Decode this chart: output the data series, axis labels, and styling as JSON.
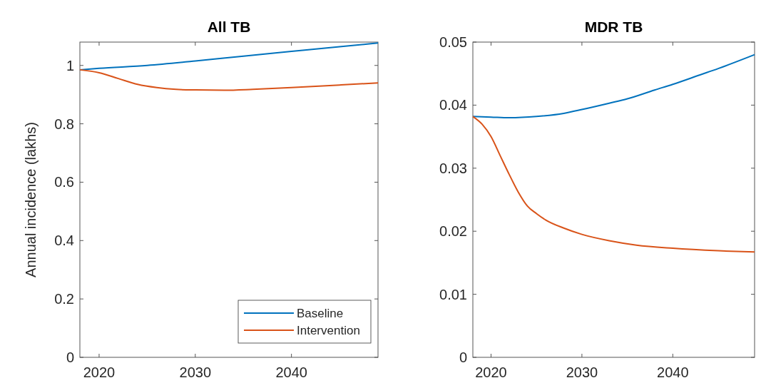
{
  "chart_data": [
    {
      "type": "line",
      "title": "All TB",
      "ylabel": "Annual incidence (lakhs)",
      "xlim": [
        2018,
        2049
      ],
      "xticks": [
        2020,
        2030,
        2040
      ],
      "ylim": [
        0,
        1.08
      ],
      "yticks": [
        0,
        0.2,
        0.4,
        0.6,
        0.8,
        1
      ],
      "legend": "bottom right",
      "marker": "none",
      "series": [
        {
          "name": "Baseline",
          "color": "#0072bd",
          "x": [
            2018,
            2020,
            2025,
            2030,
            2035,
            2040,
            2045,
            2049
          ],
          "values": [
            0.985,
            0.99,
            1.0,
            1.015,
            1.032,
            1.048,
            1.064,
            1.077
          ]
        },
        {
          "name": "Intervention",
          "color": "#d95319",
          "x": [
            2018,
            2020,
            2022,
            2024,
            2026,
            2028,
            2030,
            2033,
            2036,
            2040,
            2045,
            2049
          ],
          "values": [
            0.985,
            0.975,
            0.955,
            0.935,
            0.924,
            0.918,
            0.916,
            0.915,
            0.918,
            0.924,
            0.933,
            0.94
          ]
        }
      ]
    },
    {
      "type": "line",
      "title": "MDR TB",
      "xlim": [
        2018,
        2049
      ],
      "xticks": [
        2020,
        2030,
        2040
      ],
      "ylim": [
        0,
        0.05
      ],
      "yticks": [
        0,
        0.01,
        0.02,
        0.03,
        0.04,
        0.05
      ],
      "marker": "none",
      "series": [
        {
          "color": "#0072bd",
          "x": [
            2018,
            2020,
            2022,
            2025,
            2028,
            2030,
            2033,
            2035,
            2038,
            2040,
            2043,
            2045,
            2049
          ],
          "values": [
            0.0382,
            0.0381,
            0.038,
            0.0382,
            0.0387,
            0.0393,
            0.0403,
            0.041,
            0.0424,
            0.0433,
            0.0448,
            0.0458,
            0.048
          ]
        },
        {
          "color": "#d95319",
          "x": [
            2018,
            2019,
            2020,
            2021,
            2022,
            2023,
            2024,
            2025,
            2026,
            2028,
            2030,
            2033,
            2036,
            2040,
            2045,
            2049
          ],
          "values": [
            0.0382,
            0.037,
            0.035,
            0.032,
            0.029,
            0.0262,
            0.024,
            0.0228,
            0.0218,
            0.0205,
            0.0195,
            0.0185,
            0.0178,
            0.0173,
            0.0169,
            0.0167
          ]
        }
      ]
    }
  ]
}
